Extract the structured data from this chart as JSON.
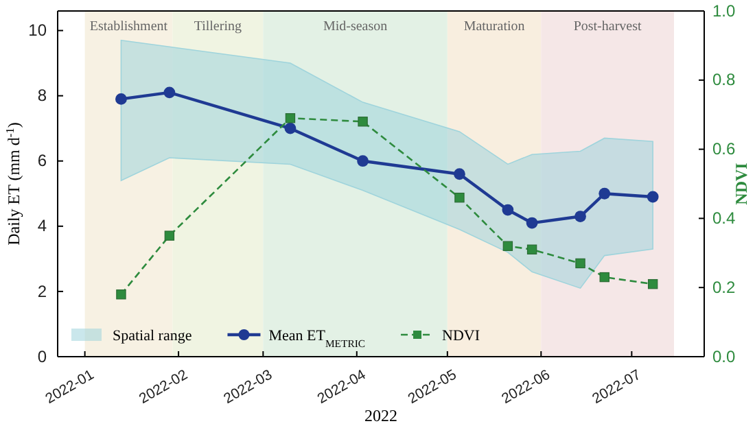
{
  "chart_data": {
    "type": "line",
    "xlabel": "2022",
    "ylabel": "Daily ET (mm d$^{-1}$)",
    "y2label": "NDVI",
    "x": [
      "2022-01-13",
      "2022-01-29",
      "2022-03-10",
      "2022-04-03",
      "2022-05-05",
      "2022-05-21",
      "2022-05-29",
      "2022-06-14",
      "2022-06-22",
      "2022-07-08"
    ],
    "xlim": [
      "2021-12-23",
      "2022-07-25"
    ],
    "xticks": [
      {
        "value": "2022-01-01",
        "label": "2022-01"
      },
      {
        "value": "2022-02-01",
        "label": "2022-02"
      },
      {
        "value": "2022-03-01",
        "label": "2022-03"
      },
      {
        "value": "2022-04-01",
        "label": "2022-04"
      },
      {
        "value": "2022-05-01",
        "label": "2022-05"
      },
      {
        "value": "2022-06-01",
        "label": "2022-06"
      },
      {
        "value": "2022-07-01",
        "label": "2022-07"
      }
    ],
    "ylim": [
      0,
      10.6
    ],
    "yticks": [
      0,
      2,
      4,
      6,
      8,
      10
    ],
    "y2lim": [
      0,
      1
    ],
    "y2ticks": [
      {
        "value": 0,
        "label": "0.0"
      },
      {
        "value": 0.2,
        "label": "0.2"
      },
      {
        "value": 0.4,
        "label": "0.4"
      },
      {
        "value": 0.6,
        "label": "0.6"
      },
      {
        "value": 0.8,
        "label": "0.8"
      },
      {
        "value": 1,
        "label": "1.0"
      }
    ],
    "series": [
      {
        "name": "Mean ET$_{METRIC}$",
        "lower": [
          5.4,
          6.1,
          5.9,
          5.1,
          3.9,
          3.2,
          2.6,
          2.1,
          3.1,
          3.3
        ],
        "upper": [
          9.7,
          9.5,
          9.0,
          7.8,
          6.9,
          5.9,
          6.2,
          6.3,
          6.7,
          6.6
        ],
        "color": "#1f3a93",
        "marker": "circle",
        "line_style": "solid",
        "values": [
          7.9,
          8.1,
          7.0,
          6.0,
          5.6,
          4.5,
          4.1,
          4.3,
          5.0,
          4.9
        ]
      },
      {
        "name": "NDVI",
        "axis": "y2",
        "color": "#2e8b3e",
        "marker": "square",
        "line_style": "dashed",
        "values": [
          0.18,
          0.35,
          0.69,
          0.68,
          0.46,
          0.32,
          0.31,
          0.27,
          0.23,
          0.21
        ]
      }
    ],
    "bands": [
      {
        "axis": "x",
        "from": "2022-01-01",
        "to": "2022-01-30",
        "label": "Establishment",
        "color": "#f7f1e3"
      },
      {
        "axis": "x",
        "from": "2022-01-30",
        "to": "2022-03-01",
        "label": "Tillering",
        "color": "#f0f4e2"
      },
      {
        "axis": "x",
        "from": "2022-03-01",
        "to": "2022-05-01",
        "label": "Mid-season",
        "color": "#e3f1e5"
      },
      {
        "axis": "x",
        "from": "2022-05-01",
        "to": "2022-06-01",
        "label": "Maturation",
        "color": "#f8eedf"
      },
      {
        "axis": "x",
        "from": "2022-06-01",
        "to": "2022-07-15",
        "label": "Post-harvest",
        "color": "#f5e7e7"
      }
    ],
    "annotations": [
      "Spatial range"
    ],
    "legend": "bottom left",
    "grid": false
  }
}
